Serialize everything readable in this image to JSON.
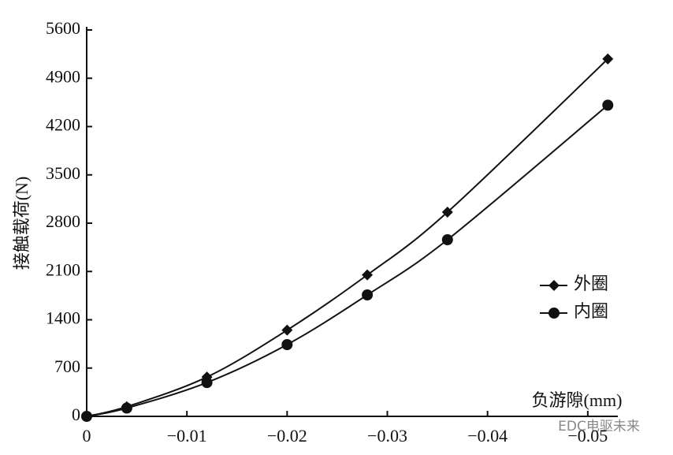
{
  "chart_data": {
    "type": "line",
    "y_label": "接触载荷(N)",
    "x_label": "负游隙(mm)",
    "watermark": "EDC电驱未来",
    "x": [
      0,
      -0.004,
      -0.012,
      -0.02,
      -0.028,
      -0.036,
      -0.052
    ],
    "series": [
      {
        "name": "外圈",
        "color": "#111111",
        "marker": "diamond",
        "values": [
          0,
          140,
          570,
          1250,
          2050,
          2960,
          5180
        ]
      },
      {
        "name": "内圈",
        "color": "#111111",
        "marker": "circle",
        "values": [
          0,
          120,
          490,
          1040,
          1760,
          2560,
          4510
        ]
      }
    ],
    "xlim": [
      0,
      -0.053
    ],
    "xticks": [
      0,
      {
        "value": -0.01,
        "label": "−0.01"
      },
      {
        "value": -0.02,
        "label": "−0.02"
      },
      {
        "value": -0.03,
        "label": "−0.03"
      },
      {
        "value": -0.04,
        "label": "−0.04"
      },
      {
        "value": -0.05,
        "label": "−0.05"
      }
    ],
    "ylim": [
      0,
      5600
    ],
    "yticks": [
      0,
      700,
      1400,
      2100,
      2800,
      3500,
      4200,
      4900,
      5600
    ],
    "grid": false,
    "legend": "right"
  }
}
